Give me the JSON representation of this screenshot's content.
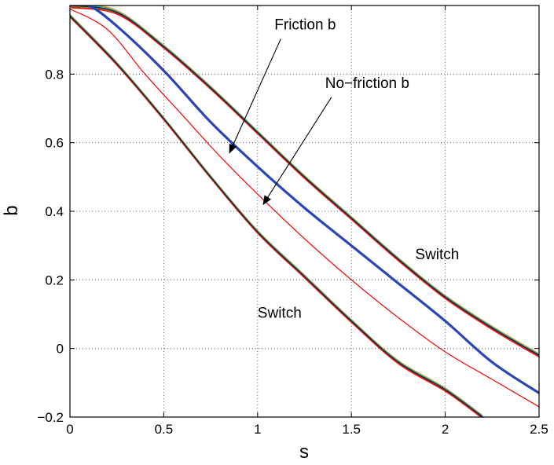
{
  "chart_data": {
    "type": "line",
    "title": "",
    "xlabel": "s",
    "ylabel": "b",
    "xlim": [
      0,
      2.5
    ],
    "ylim": [
      -0.2,
      1.0
    ],
    "grid": true,
    "x_ticks": [
      0,
      0.5,
      1,
      1.5,
      2,
      2.5
    ],
    "x_tick_labels": [
      "0",
      "0.5",
      "1",
      "1.5",
      "2",
      "2.5"
    ],
    "y_ticks": [
      -0.2,
      0,
      0.2,
      0.4,
      0.6,
      0.8
    ],
    "y_tick_labels": [
      "−0.2",
      "0",
      "0.2",
      "0.4",
      "0.6",
      "0.8"
    ],
    "series": [
      {
        "name": "Friction b",
        "color": "#2a45b5",
        "points": [
          [
            0.0,
            1.0
          ],
          [
            0.1,
            1.0
          ],
          [
            0.25,
            0.94
          ],
          [
            0.5,
            0.81
          ],
          [
            0.75,
            0.66
          ],
          [
            1.0,
            0.53
          ],
          [
            1.25,
            0.41
          ],
          [
            1.5,
            0.3
          ],
          [
            1.75,
            0.19
          ],
          [
            2.0,
            0.08
          ],
          [
            2.25,
            -0.04
          ],
          [
            2.5,
            -0.13
          ]
        ]
      },
      {
        "name": "No−friction b",
        "color": "#ee1111",
        "points": [
          [
            0.0,
            0.99
          ],
          [
            0.2,
            0.93
          ],
          [
            0.4,
            0.8
          ],
          [
            0.6,
            0.68
          ],
          [
            0.8,
            0.56
          ],
          [
            1.0,
            0.45
          ],
          [
            1.25,
            0.32
          ],
          [
            1.5,
            0.2
          ],
          [
            1.75,
            0.09
          ],
          [
            2.0,
            -0.01
          ],
          [
            2.25,
            -0.09
          ],
          [
            2.5,
            -0.17
          ]
        ]
      },
      {
        "name": "Switch",
        "color": "#222222",
        "points": [
          [
            0.0,
            1.0
          ],
          [
            0.25,
            0.98
          ],
          [
            0.5,
            0.88
          ],
          [
            0.75,
            0.76
          ],
          [
            1.0,
            0.63
          ],
          [
            1.25,
            0.5
          ],
          [
            1.5,
            0.38
          ],
          [
            1.75,
            0.26
          ],
          [
            2.0,
            0.15
          ],
          [
            2.25,
            0.06
          ],
          [
            2.5,
            -0.02
          ]
        ]
      },
      {
        "name": "Switch",
        "color": "#222222",
        "points": [
          [
            0.0,
            0.97
          ],
          [
            0.25,
            0.83
          ],
          [
            0.5,
            0.67
          ],
          [
            0.75,
            0.5
          ],
          [
            1.0,
            0.34
          ],
          [
            1.25,
            0.21
          ],
          [
            1.5,
            0.08
          ],
          [
            1.75,
            -0.04
          ],
          [
            2.0,
            -0.12
          ],
          [
            2.2,
            -0.2
          ]
        ]
      }
    ],
    "annotations": [
      {
        "text": "Friction b",
        "x": 1.09,
        "y": 0.93,
        "arrow_to": [
          0.85,
          0.57
        ]
      },
      {
        "text": "No−friction b",
        "x": 1.36,
        "y": 0.76,
        "arrow_to": [
          1.03,
          0.42
        ]
      },
      {
        "text": "Switch",
        "x": 1.84,
        "y": 0.26
      },
      {
        "text": "Switch",
        "x": 1.0,
        "y": 0.09
      }
    ],
    "band_colors": [
      "#ff9900",
      "#00aaff",
      "#66dd22",
      "#dd2222"
    ]
  }
}
